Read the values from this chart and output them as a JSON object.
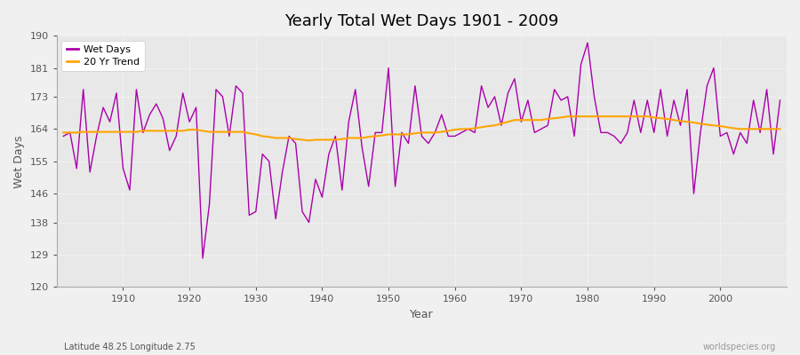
{
  "title": "Yearly Total Wet Days 1901 - 2009",
  "xlabel": "Year",
  "ylabel": "Wet Days",
  "ylim": [
    120,
    190
  ],
  "yticks": [
    120,
    129,
    138,
    146,
    155,
    164,
    173,
    181,
    190
  ],
  "subtitle": "Latitude 48.25 Longitude 2.75",
  "watermark": "worldspecies.org",
  "fig_bg_color": "#f0f0f0",
  "plot_bg_color": "#e8e8e8",
  "wet_days_color": "#aa00aa",
  "trend_color": "#FFA500",
  "grid_color": "#ffffff",
  "tick_label_color": "#555555",
  "years": [
    1901,
    1902,
    1903,
    1904,
    1905,
    1906,
    1907,
    1908,
    1909,
    1910,
    1911,
    1912,
    1913,
    1914,
    1915,
    1916,
    1917,
    1918,
    1919,
    1920,
    1921,
    1922,
    1923,
    1924,
    1925,
    1926,
    1927,
    1928,
    1929,
    1930,
    1931,
    1932,
    1933,
    1934,
    1935,
    1936,
    1937,
    1938,
    1939,
    1940,
    1941,
    1942,
    1943,
    1944,
    1945,
    1946,
    1947,
    1948,
    1949,
    1950,
    1951,
    1952,
    1953,
    1954,
    1955,
    1956,
    1957,
    1958,
    1959,
    1960,
    1961,
    1962,
    1963,
    1964,
    1965,
    1966,
    1967,
    1968,
    1969,
    1970,
    1971,
    1972,
    1973,
    1974,
    1975,
    1976,
    1977,
    1978,
    1979,
    1980,
    1981,
    1982,
    1983,
    1984,
    1985,
    1986,
    1987,
    1988,
    1989,
    1990,
    1991,
    1992,
    1993,
    1994,
    1995,
    1996,
    1997,
    1998,
    1999,
    2000,
    2001,
    2002,
    2003,
    2004,
    2005,
    2006,
    2007,
    2008,
    2009
  ],
  "wet_days": [
    162,
    163,
    153,
    175,
    152,
    162,
    170,
    166,
    174,
    153,
    147,
    175,
    163,
    168,
    171,
    167,
    158,
    162,
    174,
    166,
    170,
    128,
    143,
    175,
    173,
    162,
    176,
    174,
    140,
    141,
    157,
    155,
    139,
    152,
    162,
    160,
    141,
    138,
    150,
    145,
    157,
    162,
    147,
    166,
    175,
    159,
    148,
    163,
    163,
    181,
    148,
    163,
    160,
    176,
    162,
    160,
    163,
    168,
    162,
    162,
    163,
    164,
    163,
    176,
    170,
    173,
    165,
    174,
    178,
    166,
    172,
    163,
    164,
    165,
    175,
    172,
    173,
    162,
    182,
    188,
    173,
    163,
    163,
    162,
    160,
    163,
    172,
    163,
    172,
    163,
    175,
    162,
    172,
    165,
    175,
    146,
    163,
    176,
    181,
    162,
    163,
    157,
    163,
    160,
    172,
    163,
    175,
    157,
    172
  ],
  "trend": [
    163.0,
    163.0,
    163.0,
    163.2,
    163.2,
    163.2,
    163.2,
    163.2,
    163.2,
    163.2,
    163.2,
    163.2,
    163.5,
    163.5,
    163.5,
    163.5,
    163.5,
    163.5,
    163.5,
    163.8,
    163.8,
    163.5,
    163.2,
    163.2,
    163.2,
    163.2,
    163.2,
    163.2,
    162.8,
    162.5,
    162.0,
    161.8,
    161.5,
    161.5,
    161.5,
    161.2,
    161.0,
    160.8,
    161.0,
    161.0,
    161.0,
    161.0,
    161.2,
    161.5,
    161.5,
    161.5,
    161.8,
    162.0,
    162.2,
    162.5,
    162.5,
    162.5,
    162.5,
    162.8,
    163.0,
    163.0,
    163.0,
    163.2,
    163.5,
    163.8,
    164.0,
    164.0,
    164.2,
    164.5,
    164.8,
    165.0,
    165.5,
    166.0,
    166.5,
    166.5,
    166.5,
    166.5,
    166.5,
    166.8,
    167.0,
    167.2,
    167.5,
    167.5,
    167.5,
    167.5,
    167.5,
    167.5,
    167.5,
    167.5,
    167.5,
    167.5,
    167.5,
    167.5,
    167.5,
    167.2,
    167.0,
    166.8,
    166.5,
    166.2,
    166.0,
    165.8,
    165.5,
    165.2,
    165.0,
    164.8,
    164.5,
    164.2,
    164.0,
    164.0,
    164.0,
    164.0,
    164.0,
    164.0,
    164.0
  ]
}
